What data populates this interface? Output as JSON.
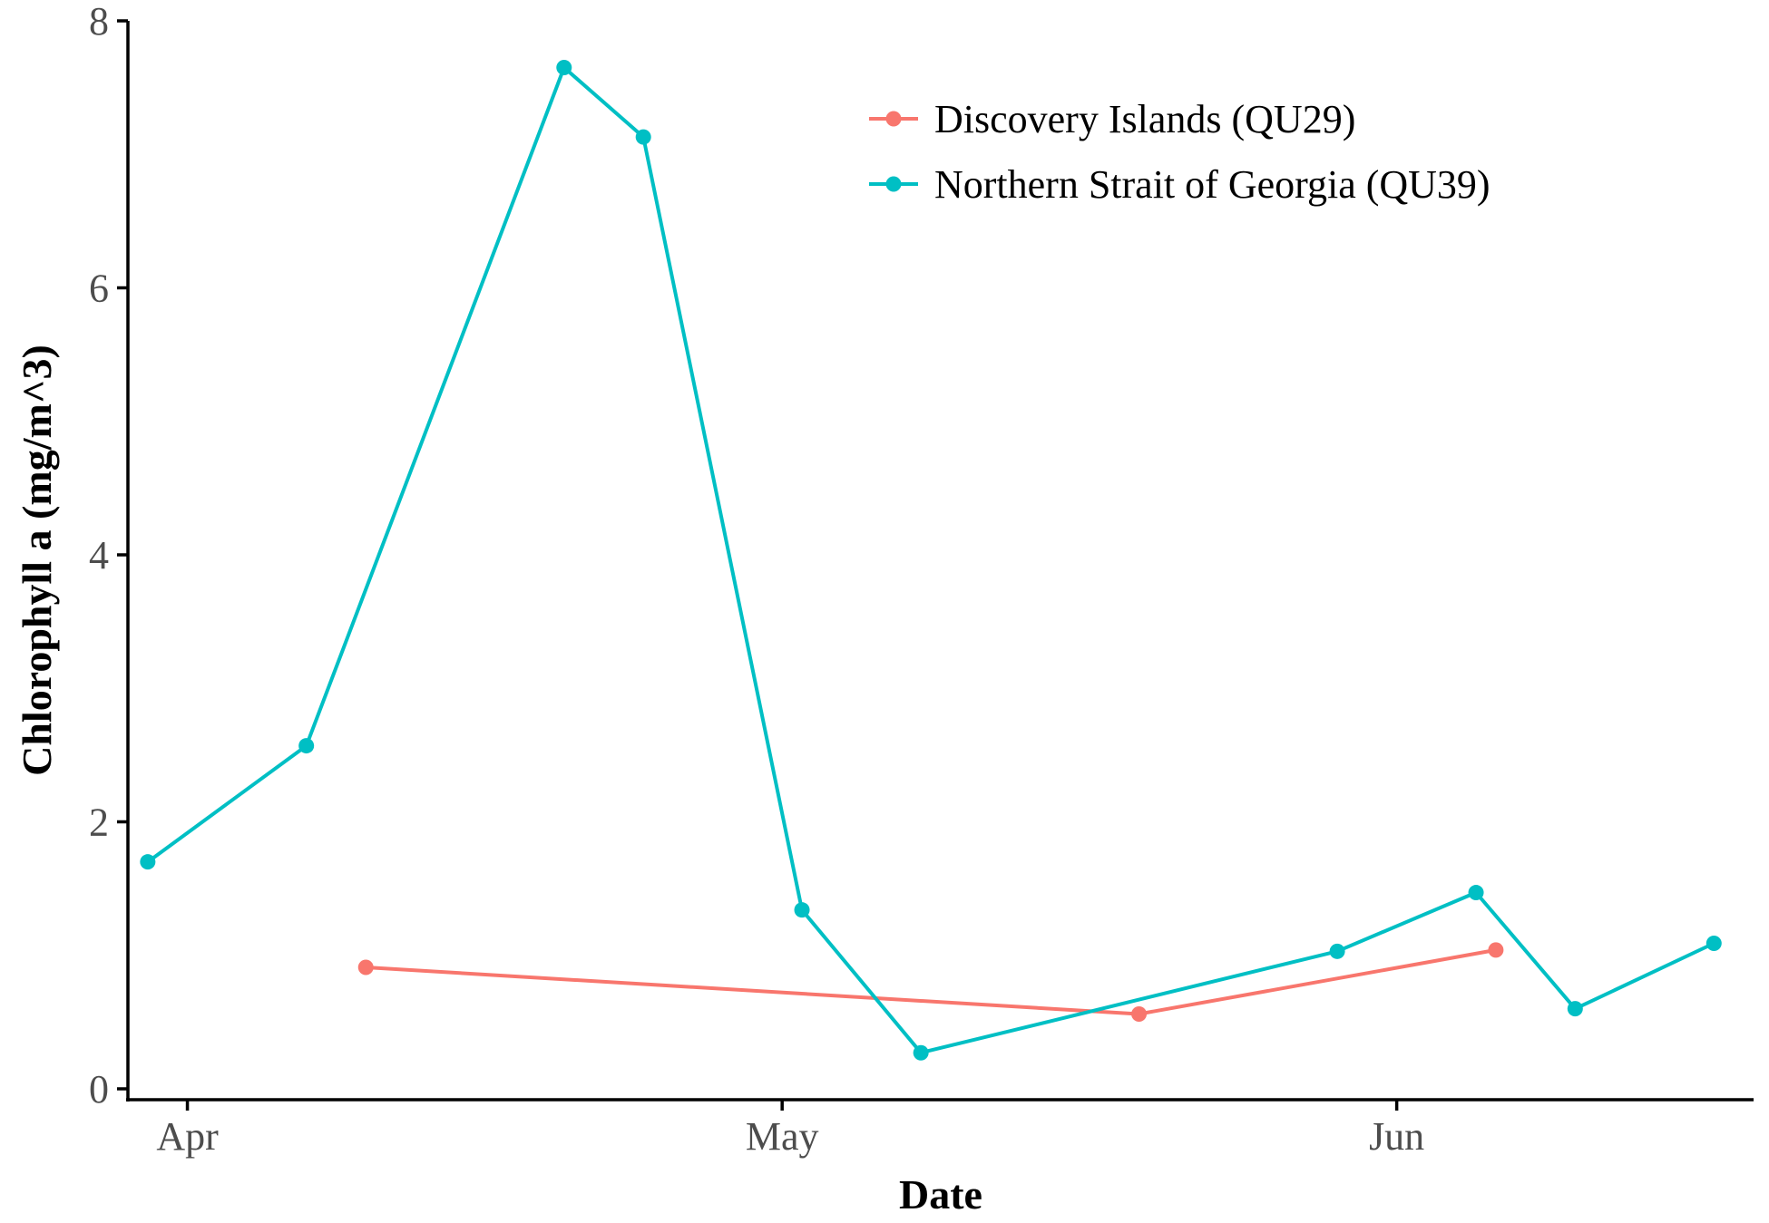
{
  "chart_data": {
    "type": "line",
    "title": "",
    "xlabel": "Date",
    "ylabel": "Chlorophyll a (mg/m^3)",
    "ylim": [
      0,
      8
    ],
    "xlim": [
      "2017-03-29",
      "2017-06-19"
    ],
    "yticks": [
      0,
      2,
      4,
      6,
      8
    ],
    "xticks": [
      {
        "date": "2017-04-01",
        "label": "Apr"
      },
      {
        "date": "2017-05-01",
        "label": "May"
      },
      {
        "date": "2017-06-01",
        "label": "Jun"
      }
    ],
    "grid": false,
    "legend_position": "top-right",
    "series": [
      {
        "name": "Discovery Islands (QU29)",
        "color": "#F8766D",
        "x": [
          "2017-04-10",
          "2017-05-19",
          "2017-06-06"
        ],
        "y": [
          0.91,
          0.56,
          1.04
        ]
      },
      {
        "name": "Northern Strait of Georgia (QU39)",
        "color": "#00BFC4",
        "x": [
          "2017-03-30",
          "2017-04-07",
          "2017-04-20",
          "2017-04-24",
          "2017-05-02",
          "2017-05-08",
          "2017-05-29",
          "2017-06-05",
          "2017-06-10",
          "2017-06-17"
        ],
        "y": [
          1.7,
          2.57,
          7.65,
          7.13,
          1.34,
          0.27,
          1.03,
          1.47,
          0.6,
          1.09
        ]
      }
    ]
  }
}
